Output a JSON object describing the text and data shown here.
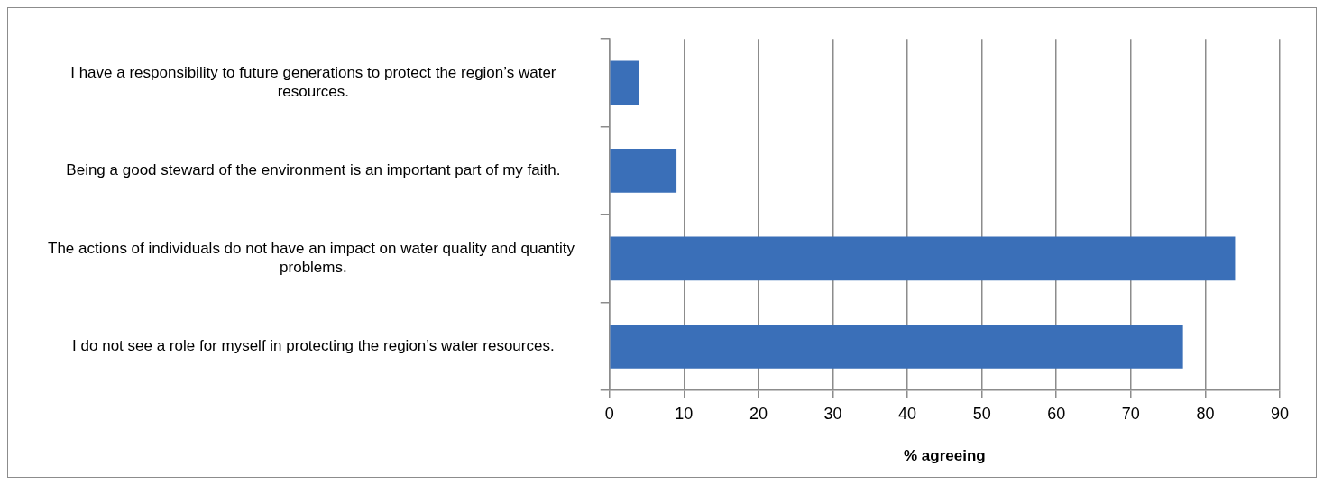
{
  "chart_data": {
    "type": "bar",
    "orientation": "horizontal",
    "xlabel": "% agreeing",
    "categories": [
      "I have a responsibility to future generations to protect the region’s water resources.",
      "Being a good steward of the environment is an important part of my faith.",
      "The actions of individuals do not have an impact on water quality and quantity  problems.",
      "I do not see a role for myself in protecting the region’s water resources."
    ],
    "values": [
      4,
      9,
      84,
      77
    ],
    "color": "#3a6fb8",
    "xlim": [
      0,
      90
    ],
    "xticks": [
      0,
      10,
      20,
      30,
      40,
      50,
      60,
      70,
      80,
      90
    ],
    "grid": "x",
    "legend": false
  }
}
